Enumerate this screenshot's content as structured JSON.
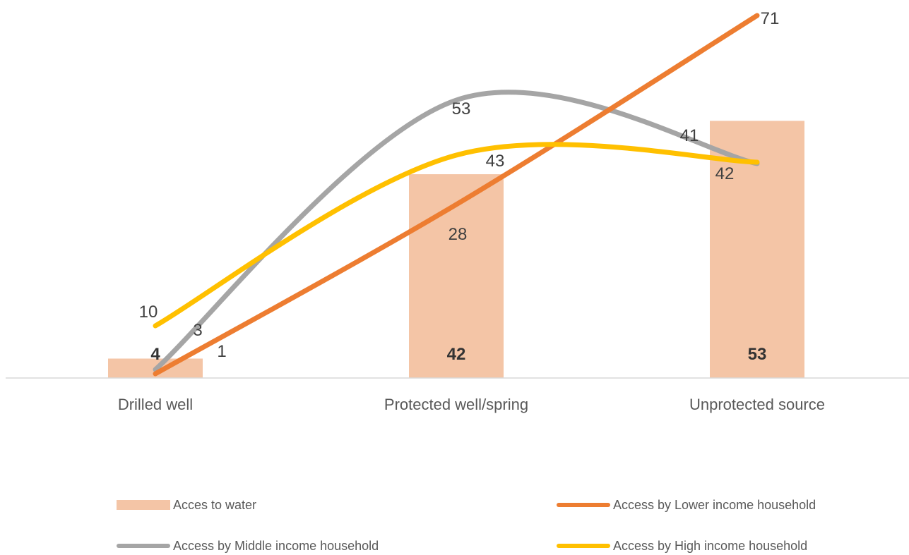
{
  "chart_data": {
    "type": "bar",
    "categories": [
      "Drilled well",
      "Protected well/spring",
      "Unprotected source"
    ],
    "bar_series": {
      "name": "Acces to water",
      "values": [
        4,
        42,
        53
      ],
      "color": "#F4C5A6"
    },
    "line_series": [
      {
        "name": "Access by Lower income household",
        "values": [
          1,
          28,
          71
        ],
        "color": "#ED7D31"
      },
      {
        "name": "Access by Middle income household",
        "values": [
          3,
          53,
          41
        ],
        "color": "#A5A5A5"
      },
      {
        "name": "Access by High income household",
        "values": [
          10,
          43,
          42
        ],
        "color": "#FFC000"
      }
    ],
    "ylim": [
      0,
      75
    ],
    "grid": false,
    "legend_position": "bottom"
  }
}
